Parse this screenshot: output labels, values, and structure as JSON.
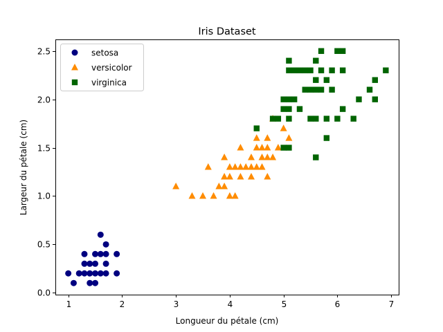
{
  "chart_data": {
    "type": "scatter",
    "title": "Iris Dataset",
    "xlabel": "Longueur du pétale (cm)",
    "ylabel": "Largeur du pétale (cm)",
    "xlim": [
      0.76,
      7.14
    ],
    "ylim": [
      -0.02,
      2.62
    ],
    "xticks": [
      1,
      2,
      3,
      4,
      5,
      6,
      7
    ],
    "xtick_labels": [
      "1",
      "2",
      "3",
      "4",
      "5",
      "6",
      "7"
    ],
    "yticks": [
      0.0,
      0.5,
      1.0,
      1.5,
      2.0,
      2.5
    ],
    "ytick_labels": [
      "0.0",
      "0.5",
      "1.0",
      "1.5",
      "2.0",
      "2.5"
    ],
    "grid": false,
    "legend_position": "top-left",
    "series": [
      {
        "name": "setosa",
        "marker": "circle",
        "color": "#000080",
        "points": [
          [
            1.0,
            0.2
          ],
          [
            1.1,
            0.1
          ],
          [
            1.2,
            0.2
          ],
          [
            1.3,
            0.2
          ],
          [
            1.3,
            0.3
          ],
          [
            1.3,
            0.4
          ],
          [
            1.4,
            0.1
          ],
          [
            1.4,
            0.2
          ],
          [
            1.4,
            0.3
          ],
          [
            1.5,
            0.1
          ],
          [
            1.5,
            0.2
          ],
          [
            1.5,
            0.3
          ],
          [
            1.5,
            0.4
          ],
          [
            1.6,
            0.2
          ],
          [
            1.6,
            0.4
          ],
          [
            1.6,
            0.6
          ],
          [
            1.7,
            0.2
          ],
          [
            1.7,
            0.3
          ],
          [
            1.7,
            0.4
          ],
          [
            1.7,
            0.5
          ],
          [
            1.9,
            0.2
          ],
          [
            1.9,
            0.4
          ]
        ]
      },
      {
        "name": "versicolor",
        "marker": "triangle",
        "color": "#ff8c00",
        "points": [
          [
            3.0,
            1.1
          ],
          [
            3.3,
            1.0
          ],
          [
            3.5,
            1.0
          ],
          [
            3.6,
            1.3
          ],
          [
            3.7,
            1.0
          ],
          [
            3.8,
            1.1
          ],
          [
            3.9,
            1.1
          ],
          [
            3.9,
            1.2
          ],
          [
            3.9,
            1.4
          ],
          [
            4.0,
            1.0
          ],
          [
            4.0,
            1.2
          ],
          [
            4.0,
            1.3
          ],
          [
            4.1,
            1.0
          ],
          [
            4.1,
            1.3
          ],
          [
            4.2,
            1.2
          ],
          [
            4.2,
            1.3
          ],
          [
            4.2,
            1.5
          ],
          [
            4.3,
            1.3
          ],
          [
            4.4,
            1.2
          ],
          [
            4.4,
            1.3
          ],
          [
            4.4,
            1.4
          ],
          [
            4.5,
            1.3
          ],
          [
            4.5,
            1.5
          ],
          [
            4.5,
            1.6
          ],
          [
            4.6,
            1.3
          ],
          [
            4.6,
            1.4
          ],
          [
            4.6,
            1.5
          ],
          [
            4.7,
            1.2
          ],
          [
            4.7,
            1.4
          ],
          [
            4.7,
            1.5
          ],
          [
            4.7,
            1.6
          ],
          [
            4.8,
            1.4
          ],
          [
            4.8,
            1.8
          ],
          [
            4.9,
            1.5
          ],
          [
            5.0,
            1.7
          ],
          [
            5.1,
            1.6
          ]
        ]
      },
      {
        "name": "virginica",
        "marker": "square",
        "color": "#006400",
        "points": [
          [
            4.5,
            1.7
          ],
          [
            4.8,
            1.8
          ],
          [
            4.9,
            1.8
          ],
          [
            5.0,
            1.5
          ],
          [
            5.0,
            2.0
          ],
          [
            5.0,
            1.9
          ],
          [
            5.1,
            1.5
          ],
          [
            5.1,
            1.8
          ],
          [
            5.1,
            1.9
          ],
          [
            5.1,
            2.0
          ],
          [
            5.1,
            2.3
          ],
          [
            5.1,
            2.4
          ],
          [
            5.2,
            2.0
          ],
          [
            5.2,
            2.3
          ],
          [
            5.3,
            1.9
          ],
          [
            5.3,
            2.3
          ],
          [
            5.4,
            2.1
          ],
          [
            5.4,
            2.3
          ],
          [
            5.5,
            1.8
          ],
          [
            5.5,
            2.1
          ],
          [
            5.5,
            2.3
          ],
          [
            5.6,
            1.4
          ],
          [
            5.6,
            1.8
          ],
          [
            5.6,
            2.1
          ],
          [
            5.6,
            2.2
          ],
          [
            5.6,
            2.4
          ],
          [
            5.7,
            2.1
          ],
          [
            5.7,
            2.3
          ],
          [
            5.7,
            2.5
          ],
          [
            5.8,
            1.6
          ],
          [
            5.8,
            1.8
          ],
          [
            5.8,
            2.2
          ],
          [
            5.9,
            2.1
          ],
          [
            5.9,
            2.3
          ],
          [
            6.0,
            1.8
          ],
          [
            6.0,
            2.5
          ],
          [
            6.1,
            1.9
          ],
          [
            6.1,
            2.3
          ],
          [
            6.1,
            2.5
          ],
          [
            6.3,
            1.8
          ],
          [
            6.4,
            2.0
          ],
          [
            6.6,
            2.1
          ],
          [
            6.7,
            2.0
          ],
          [
            6.7,
            2.2
          ],
          [
            6.9,
            2.3
          ]
        ]
      }
    ]
  }
}
